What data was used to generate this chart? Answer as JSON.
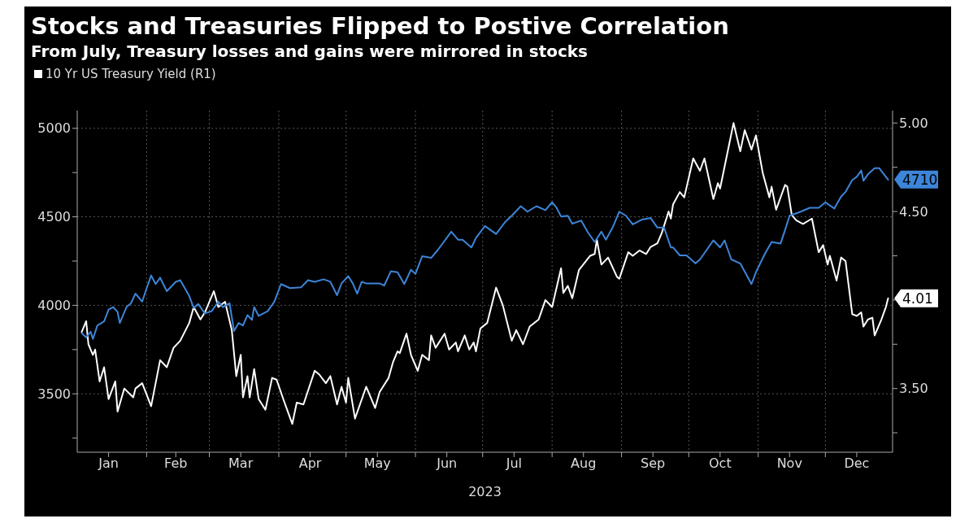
{
  "chart_data": {
    "type": "line",
    "title": "Stocks and Treasuries Flipped to Postive Correlation",
    "subtitle": "From July, Treasury losses and gains were mirrored in stocks",
    "xlabel": "2023",
    "legend": "top left",
    "grid": true,
    "xlim": [
      "2023-01-01",
      "2023-12-31"
    ],
    "xticks": [
      {
        "value": "2023-01-15",
        "label": "Jan"
      },
      {
        "value": "2023-02-01",
        "label": null
      },
      {
        "value": "2023-02-14",
        "label": "Feb"
      },
      {
        "value": "2023-03-01",
        "label": null
      },
      {
        "value": "2023-03-15",
        "label": "Mar"
      },
      {
        "value": "2023-04-01",
        "label": null
      },
      {
        "value": "2023-04-15",
        "label": "Apr"
      },
      {
        "value": "2023-05-01",
        "label": null
      },
      {
        "value": "2023-05-15",
        "label": "May"
      },
      {
        "value": "2023-06-01",
        "label": null
      },
      {
        "value": "2023-06-15",
        "label": "Jun"
      },
      {
        "value": "2023-07-01",
        "label": null
      },
      {
        "value": "2023-07-15",
        "label": "Jul"
      },
      {
        "value": "2023-08-01",
        "label": null
      },
      {
        "value": "2023-08-15",
        "label": "Aug"
      },
      {
        "value": "2023-09-01",
        "label": null
      },
      {
        "value": "2023-09-15",
        "label": "Sep"
      },
      {
        "value": "2023-10-01",
        "label": null
      },
      {
        "value": "2023-10-15",
        "label": "Oct"
      },
      {
        "value": "2023-11-01",
        "label": null
      },
      {
        "value": "2023-11-15",
        "label": "Nov"
      },
      {
        "value": "2023-12-01",
        "label": null
      },
      {
        "value": "2023-12-15",
        "label": "Dec"
      }
    ],
    "ylim": [
      3170,
      5100
    ],
    "yticks": [
      {
        "value": 3250,
        "label": null
      },
      3500,
      {
        "value": 3750,
        "label": null
      },
      4000,
      {
        "value": 4250,
        "label": null
      },
      4500,
      {
        "value": 4750,
        "label": null
      },
      5000
    ],
    "y2lim": [
      3.14,
      5.07
    ],
    "y2ticks": [
      {
        "value": 3.25,
        "label": null
      },
      {
        "value": 3.5,
        "label": "3.50"
      },
      {
        "value": 3.75,
        "label": null
      },
      {
        "value": 4,
        "label": null
      },
      {
        "value": 4.25,
        "label": null
      },
      {
        "value": 4.5,
        "label": "4.50"
      },
      {
        "value": 4.75,
        "label": null
      },
      {
        "value": 5,
        "label": "5.00"
      }
    ],
    "series": [
      {
        "name": "10 Yr US Treasury Yield (R1)",
        "color": "#ffffff",
        "axis": "y2",
        "x": [
          "2023-01-03",
          "2023-01-05",
          "2023-01-06",
          "2023-01-08",
          "2023-01-09",
          "2023-01-11",
          "2023-01-13",
          "2023-01-15",
          "2023-01-18",
          "2023-01-19",
          "2023-01-22",
          "2023-01-26",
          "2023-01-27",
          "2023-01-30",
          "2023-02-03",
          "2023-02-07",
          "2023-02-10",
          "2023-02-13",
          "2023-02-16",
          "2023-02-20",
          "2023-02-22",
          "2023-02-25",
          "2023-02-27",
          "2023-03-03",
          "2023-03-05",
          "2023-03-08",
          "2023-03-11",
          "2023-03-13",
          "2023-03-15",
          "2023-03-16",
          "2023-03-18",
          "2023-03-19",
          "2023-03-21",
          "2023-03-23",
          "2023-03-24",
          "2023-03-26",
          "2023-03-29",
          "2023-03-31",
          "2023-04-03",
          "2023-04-07",
          "2023-04-09",
          "2023-04-12",
          "2023-04-17",
          "2023-04-19",
          "2023-04-22",
          "2023-04-24",
          "2023-04-27",
          "2023-04-29",
          "2023-05-01",
          "2023-05-02",
          "2023-05-05",
          "2023-05-10",
          "2023-05-14",
          "2023-05-16",
          "2023-05-20",
          "2023-05-22",
          "2023-05-24",
          "2023-05-25",
          "2023-05-28",
          "2023-05-30",
          "2023-06-02",
          "2023-06-04",
          "2023-06-07",
          "2023-06-08",
          "2023-06-10",
          "2023-06-14",
          "2023-06-16",
          "2023-06-19",
          "2023-06-20",
          "2023-06-23",
          "2023-06-25",
          "2023-06-27",
          "2023-06-28",
          "2023-06-30",
          "2023-07-03",
          "2023-07-07",
          "2023-07-10",
          "2023-07-14",
          "2023-07-16",
          "2023-07-19",
          "2023-07-22",
          "2023-07-26",
          "2023-07-29",
          "2023-08-01",
          "2023-08-05",
          "2023-08-06",
          "2023-08-08",
          "2023-08-10",
          "2023-08-13",
          "2023-08-18",
          "2023-08-20",
          "2023-08-21",
          "2023-08-23",
          "2023-08-26",
          "2023-08-30",
          "2023-08-31",
          "2023-09-04",
          "2023-09-06",
          "2023-09-09",
          "2023-09-12",
          "2023-09-14",
          "2023-09-17",
          "2023-09-19",
          "2023-09-22",
          "2023-09-23",
          "2023-09-24",
          "2023-09-27",
          "2023-09-29",
          "2023-10-03",
          "2023-10-06",
          "2023-10-08",
          "2023-10-12",
          "2023-10-14",
          "2023-10-15",
          "2023-10-21",
          "2023-10-24",
          "2023-10-26",
          "2023-10-29",
          "2023-10-31",
          "2023-11-03",
          "2023-11-06",
          "2023-11-07",
          "2023-11-09",
          "2023-11-13",
          "2023-11-14",
          "2023-11-16",
          "2023-11-18",
          "2023-11-21",
          "2023-11-25",
          "2023-11-28",
          "2023-11-30",
          "2023-12-02",
          "2023-12-03",
          "2023-12-06",
          "2023-12-08",
          "2023-12-10",
          "2023-12-13",
          "2023-12-15",
          "2023-12-17",
          "2023-12-18",
          "2023-12-20",
          "2023-12-22",
          "2023-12-23",
          "2023-12-26",
          "2023-12-28",
          "2023-12-29"
        ],
        "values": [
          3.82,
          3.88,
          3.75,
          3.69,
          3.72,
          3.54,
          3.62,
          3.44,
          3.54,
          3.37,
          3.5,
          3.45,
          3.5,
          3.53,
          3.4,
          3.66,
          3.62,
          3.73,
          3.77,
          3.87,
          3.96,
          3.89,
          3.93,
          4.05,
          3.96,
          3.99,
          3.83,
          3.57,
          3.69,
          3.45,
          3.57,
          3.45,
          3.61,
          3.44,
          3.42,
          3.38,
          3.56,
          3.55,
          3.44,
          3.3,
          3.42,
          3.41,
          3.6,
          3.58,
          3.53,
          3.57,
          3.41,
          3.51,
          3.42,
          3.56,
          3.33,
          3.51,
          3.39,
          3.48,
          3.56,
          3.65,
          3.71,
          3.7,
          3.81,
          3.69,
          3.6,
          3.69,
          3.66,
          3.8,
          3.73,
          3.81,
          3.72,
          3.76,
          3.71,
          3.8,
          3.72,
          3.76,
          3.71,
          3.84,
          3.87,
          4.07,
          3.97,
          3.77,
          3.83,
          3.75,
          3.85,
          3.89,
          4.0,
          3.96,
          4.18,
          4.04,
          4.08,
          4.01,
          4.17,
          4.25,
          4.26,
          4.34,
          4.2,
          4.24,
          4.13,
          4.12,
          4.27,
          4.25,
          4.28,
          4.26,
          4.3,
          4.32,
          4.38,
          4.5,
          4.46,
          4.54,
          4.61,
          4.58,
          4.8,
          4.73,
          4.8,
          4.57,
          4.66,
          4.63,
          5.0,
          4.84,
          4.96,
          4.85,
          4.93,
          4.72,
          4.58,
          4.64,
          4.51,
          4.65,
          4.64,
          4.48,
          4.45,
          4.43,
          4.46,
          4.27,
          4.31,
          4.2,
          4.25,
          4.11,
          4.24,
          4.22,
          3.92,
          3.91,
          3.93,
          3.85,
          3.89,
          3.9,
          3.8,
          3.89,
          3.96,
          4.01
        ],
        "value_labels": [
          null,
          null,
          null,
          null,
          null,
          null,
          null,
          null,
          null,
          null,
          null,
          null,
          null,
          null,
          null,
          null,
          null,
          null,
          null,
          null,
          null,
          null,
          null,
          null,
          null,
          null,
          null,
          null,
          null,
          null,
          null,
          null,
          null,
          null,
          null,
          null,
          null,
          null,
          null,
          null,
          null,
          null,
          null,
          null,
          null,
          null,
          null,
          null,
          null,
          null,
          null,
          null,
          null,
          null,
          null,
          null,
          null,
          null,
          null,
          null,
          null,
          null,
          null,
          null,
          null,
          null,
          null,
          null,
          null,
          null,
          null,
          null,
          null,
          null,
          null,
          null,
          null,
          null,
          null,
          null,
          null,
          null,
          null,
          null,
          null,
          null,
          null,
          null,
          null,
          null,
          null,
          null,
          null,
          null,
          null,
          null,
          null,
          null,
          null,
          null,
          null,
          null,
          null,
          null,
          null,
          null,
          null,
          null,
          null,
          null,
          null,
          null,
          null,
          null,
          null,
          null,
          null,
          null,
          null,
          null,
          null,
          null,
          null,
          null,
          null,
          null,
          null,
          null,
          null,
          null,
          null,
          null,
          null,
          null,
          null,
          null,
          null,
          null,
          null,
          null,
          null,
          null,
          null,
          null,
          null,
          "4.01"
        ]
      },
      {
        "color": "#3d85d8",
        "x": [
          "2023-01-03",
          "2023-01-05",
          "2023-01-07",
          "2023-01-08",
          "2023-01-10",
          "2023-01-13",
          "2023-01-15",
          "2023-01-17",
          "2023-01-19",
          "2023-01-20",
          "2023-01-23",
          "2023-01-25",
          "2023-01-27",
          "2023-01-30",
          "2023-02-01",
          "2023-02-03",
          "2023-02-05",
          "2023-02-07",
          "2023-02-10",
          "2023-02-14",
          "2023-02-16",
          "2023-02-20",
          "2023-02-22",
          "2023-02-24",
          "2023-02-27",
          "2023-03-02",
          "2023-03-05",
          "2023-03-07",
          "2023-03-10",
          "2023-03-12",
          "2023-03-14",
          "2023-03-16",
          "2023-03-18",
          "2023-03-20",
          "2023-03-21",
          "2023-03-23",
          "2023-03-27",
          "2023-03-30",
          "2023-04-02",
          "2023-04-06",
          "2023-04-11",
          "2023-04-14",
          "2023-04-17",
          "2023-04-21",
          "2023-04-24",
          "2023-04-27",
          "2023-04-29",
          "2023-05-02",
          "2023-05-04",
          "2023-05-06",
          "2023-05-08",
          "2023-05-10",
          "2023-05-13",
          "2023-05-16",
          "2023-05-18",
          "2023-05-21",
          "2023-05-24",
          "2023-05-27",
          "2023-05-30",
          "2023-06-01",
          "2023-06-04",
          "2023-06-08",
          "2023-06-11",
          "2023-06-17",
          "2023-06-20",
          "2023-06-22",
          "2023-06-26",
          "2023-06-28",
          "2023-07-02",
          "2023-07-07",
          "2023-07-11",
          "2023-07-14",
          "2023-07-18",
          "2023-07-21",
          "2023-07-25",
          "2023-07-29",
          "2023-08-01",
          "2023-08-03",
          "2023-08-05",
          "2023-08-08",
          "2023-08-10",
          "2023-08-14",
          "2023-08-17",
          "2023-08-20",
          "2023-08-23",
          "2023-08-25",
          "2023-08-28",
          "2023-08-31",
          "2023-09-03",
          "2023-09-06",
          "2023-09-10",
          "2023-09-14",
          "2023-09-17",
          "2023-09-20",
          "2023-09-23",
          "2023-09-24",
          "2023-09-27",
          "2023-09-30",
          "2023-10-04",
          "2023-10-06",
          "2023-10-12",
          "2023-10-15",
          "2023-10-17",
          "2023-10-20",
          "2023-10-24",
          "2023-10-29",
          "2023-10-31",
          "2023-11-04",
          "2023-11-07",
          "2023-11-11",
          "2023-11-13",
          "2023-11-15",
          "2023-11-20",
          "2023-11-24",
          "2023-11-28",
          "2023-12-01",
          "2023-12-05",
          "2023-12-08",
          "2023-12-10",
          "2023-12-13",
          "2023-12-15",
          "2023-12-17",
          "2023-12-18",
          "2023-12-20",
          "2023-12-23",
          "2023-12-25",
          "2023-12-29"
        ],
        "values": [
          3842,
          3819,
          3851,
          3810,
          3886,
          3909,
          3976,
          3990,
          3963,
          3900,
          3990,
          4012,
          4066,
          4021,
          4097,
          4169,
          4120,
          4156,
          4080,
          4133,
          4142,
          4053,
          3985,
          4008,
          3954,
          3967,
          4021,
          3990,
          4012,
          3855,
          3900,
          3886,
          3945,
          3918,
          3990,
          3940,
          3967,
          4021,
          4120,
          4097,
          4102,
          4142,
          4133,
          4147,
          4133,
          4057,
          4124,
          4165,
          4124,
          4066,
          4133,
          4124,
          4124,
          4124,
          4111,
          4192,
          4187,
          4120,
          4201,
          4178,
          4277,
          4268,
          4313,
          4416,
          4371,
          4371,
          4327,
          4380,
          4448,
          4403,
          4470,
          4506,
          4560,
          4529,
          4560,
          4538,
          4582,
          4551,
          4502,
          4506,
          4461,
          4479,
          4412,
          4358,
          4416,
          4371,
          4439,
          4529,
          4506,
          4457,
          4484,
          4493,
          4439,
          4439,
          4327,
          4327,
          4282,
          4282,
          4237,
          4259,
          4367,
          4327,
          4367,
          4259,
          4237,
          4120,
          4187,
          4291,
          4358,
          4349,
          4425,
          4506,
          4529,
          4551,
          4551,
          4582,
          4547,
          4614,
          4641,
          4708,
          4726,
          4762,
          4704,
          4740,
          4775,
          4775,
          4710
        ],
        "value_labels": [
          null,
          null,
          null,
          null,
          null,
          null,
          null,
          null,
          null,
          null,
          null,
          null,
          null,
          null,
          null,
          null,
          null,
          null,
          null,
          null,
          null,
          null,
          null,
          null,
          null,
          null,
          null,
          null,
          null,
          null,
          null,
          null,
          null,
          null,
          null,
          null,
          null,
          null,
          null,
          null,
          null,
          null,
          null,
          null,
          null,
          null,
          null,
          null,
          null,
          null,
          null,
          null,
          null,
          null,
          null,
          null,
          null,
          null,
          null,
          null,
          null,
          null,
          null,
          null,
          null,
          null,
          null,
          null,
          null,
          null,
          null,
          null,
          null,
          null,
          null,
          null,
          null,
          null,
          null,
          null,
          null,
          null,
          null,
          null,
          null,
          null,
          null,
          null,
          null,
          null,
          null,
          null,
          null,
          null,
          null,
          null,
          null,
          null,
          null,
          null,
          null,
          null,
          null,
          null,
          null,
          null,
          null,
          null,
          null,
          null,
          null,
          null,
          null,
          null,
          null,
          null,
          null,
          null,
          null,
          null,
          null,
          null,
          null,
          null,
          null,
          null,
          "4710"
        ]
      }
    ]
  }
}
